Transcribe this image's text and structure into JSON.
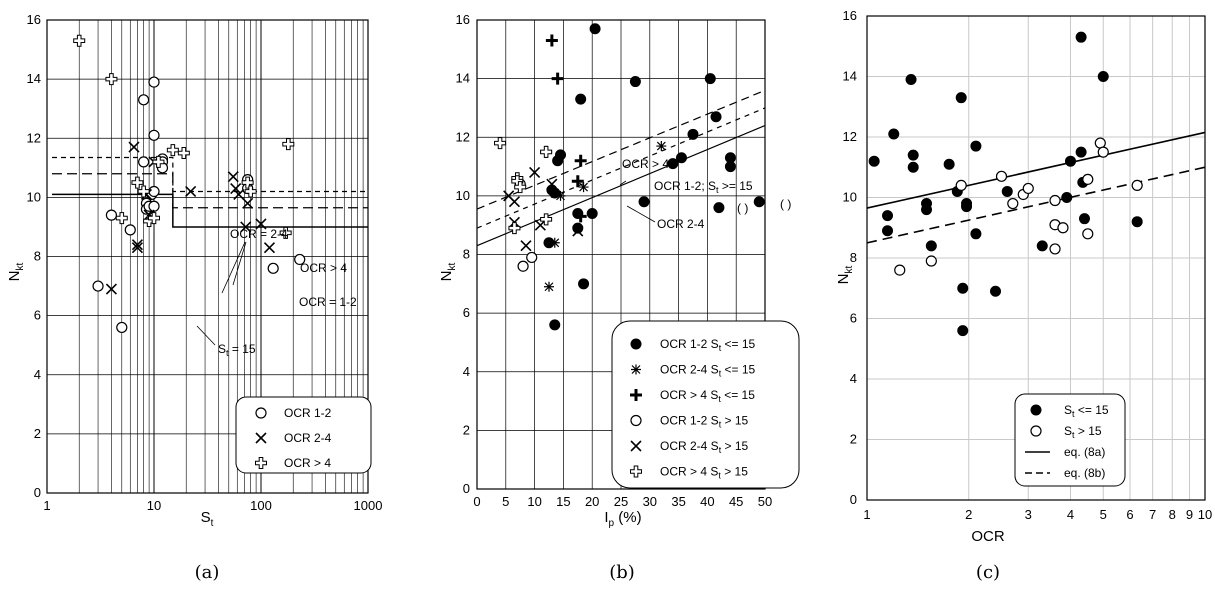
{
  "chart_data": [
    {
      "type": "scatter",
      "caption": "(a)",
      "xlabel": "S",
      "xlabel_sub": "t",
      "ylabel": "N",
      "ylabel_sub": "kt",
      "xscale": "log",
      "xlim": [
        1,
        1000
      ],
      "ylim": [
        0,
        16
      ],
      "xticks": [
        1,
        10,
        100,
        1000
      ],
      "xtick_labels": [
        "1",
        "10",
        "100",
        "1000"
      ],
      "yticks": [
        0,
        2,
        4,
        6,
        8,
        10,
        12,
        14,
        16
      ],
      "grid": true,
      "legend_position": "bottom-right",
      "series": [
        {
          "name": "OCR 1-2",
          "marker": "circle",
          "points": [
            [
              3,
              7
            ],
            [
              4,
              9.4
            ],
            [
              5,
              5.6
            ],
            [
              6,
              8.9
            ],
            [
              8,
              13.3
            ],
            [
              8,
              11.2
            ],
            [
              8.5,
              9.8
            ],
            [
              8.5,
              9.6
            ],
            [
              9,
              9.7
            ],
            [
              9.5,
              10.1
            ],
            [
              10,
              13.9
            ],
            [
              10,
              12.1
            ],
            [
              10,
              10.2
            ],
            [
              10,
              9.7
            ],
            [
              12,
              11.3
            ],
            [
              12,
              11.2
            ],
            [
              12,
              11
            ],
            [
              75,
              10.6
            ],
            [
              75,
              10.3
            ],
            [
              130,
              7.6
            ],
            [
              230,
              7.9
            ]
          ]
        },
        {
          "name": "OCR 2-4",
          "marker": "x",
          "points": [
            [
              4,
              6.9
            ],
            [
              6.5,
              11.7
            ],
            [
              7,
              8.4
            ],
            [
              7,
              8.3
            ],
            [
              8.5,
              10.1
            ],
            [
              9,
              9.4
            ],
            [
              10,
              11.2
            ],
            [
              22,
              10.2
            ],
            [
              55,
              10.7
            ],
            [
              58,
              10.3
            ],
            [
              62,
              10.1
            ],
            [
              75,
              9.8
            ],
            [
              72,
              9
            ],
            [
              100,
              9.1
            ],
            [
              120,
              8.3
            ]
          ]
        },
        {
          "name": "OCR > 4",
          "marker": "plus",
          "points": [
            [
              2,
              15.3
            ],
            [
              4,
              14
            ],
            [
              5,
              9.3
            ],
            [
              7,
              10.5
            ],
            [
              8,
              10.2
            ],
            [
              9,
              9.2
            ],
            [
              10,
              9.3
            ],
            [
              11,
              11.2
            ],
            [
              15,
              11.6
            ],
            [
              19,
              11.5
            ],
            [
              75,
              10.5
            ],
            [
              80,
              10.2
            ],
            [
              170,
              8.8
            ],
            [
              180,
              11.8
            ]
          ]
        }
      ],
      "annotations": [
        "OCR = 2-4",
        "OCR > 4",
        "OCR = 1-2",
        "S_t = 15"
      ],
      "legend": [
        "OCR 1-2",
        "OCR 2-4",
        "OCR > 4"
      ]
    },
    {
      "type": "scatter",
      "caption": "(b)",
      "xlabel": "I",
      "xlabel_sub": "p",
      "xlabel_suffix": " (%)",
      "ylabel": "N",
      "ylabel_sub": "kt",
      "xlim": [
        0,
        50
      ],
      "ylim": [
        0,
        16
      ],
      "xticks": [
        0,
        5,
        10,
        15,
        20,
        25,
        30,
        35,
        40,
        45,
        50
      ],
      "yticks": [
        0,
        2,
        4,
        6,
        8,
        10,
        12,
        14,
        16
      ],
      "grid": true,
      "legend_position": "bottom-right",
      "series": [
        {
          "name": "OCR 1-2 S_t <= 15",
          "marker": "filled-circle",
          "points": [
            [
              12.5,
              8.4
            ],
            [
              13,
              10.2
            ],
            [
              13.5,
              10.1
            ],
            [
              13.5,
              5.6
            ],
            [
              14,
              11.2
            ],
            [
              14.5,
              11.4
            ],
            [
              17.5,
              8.9
            ],
            [
              17.5,
              9.4
            ],
            [
              18,
              13.3
            ],
            [
              18.5,
              7
            ],
            [
              20,
              9.4
            ],
            [
              20.5,
              15.7
            ],
            [
              27.5,
              13.9
            ],
            [
              29,
              9.8
            ],
            [
              34,
              11.1
            ],
            [
              35.5,
              11.3
            ],
            [
              37.5,
              12.1
            ],
            [
              40.5,
              14
            ],
            [
              41.5,
              12.7
            ],
            [
              42,
              9.6
            ],
            [
              44,
              11.3
            ],
            [
              44,
              11
            ],
            [
              49,
              9.8
            ]
          ]
        },
        {
          "name": "OCR 2-4 S_t <= 15",
          "marker": "asterisk",
          "points": [
            [
              12.5,
              6.9
            ],
            [
              13.5,
              8.4
            ],
            [
              14.5,
              10
            ],
            [
              18.5,
              10.3
            ],
            [
              32,
              11.7
            ]
          ]
        },
        {
          "name": "OCR > 4 S_t <= 15",
          "marker": "bold-plus",
          "points": [
            [
              13,
              15.3
            ],
            [
              14,
              14
            ],
            [
              12,
              11.5
            ],
            [
              17.5,
              10.5
            ],
            [
              18,
              11.2
            ],
            [
              18,
              9.3
            ]
          ]
        },
        {
          "name": "OCR 1-2 S_t > 15",
          "marker": "circle",
          "points": [
            [
              7.5,
              10.4
            ],
            [
              8,
              7.6
            ],
            [
              9.5,
              7.9
            ]
          ]
        },
        {
          "name": "OCR 2-4 S_t > 15",
          "marker": "x",
          "points": [
            [
              5.5,
              10
            ],
            [
              6.5,
              9.8
            ],
            [
              6.5,
              9.1
            ],
            [
              8.5,
              8.3
            ],
            [
              10,
              10.8
            ],
            [
              11,
              9
            ],
            [
              13,
              10.4
            ],
            [
              17.5,
              8.8
            ]
          ]
        },
        {
          "name": "OCR > 4 S_t > 15",
          "marker": "plus",
          "points": [
            [
              4,
              11.8
            ],
            [
              6.5,
              8.9
            ],
            [
              7,
              10.6
            ],
            [
              7,
              10.5
            ],
            [
              7.5,
              10.3
            ],
            [
              12,
              9.2
            ],
            [
              12,
              11.5
            ]
          ]
        }
      ],
      "annotations": [
        "OCR > 4",
        "OCR 1-2; S_t >= 15",
        "OCR 2-4",
        "( )",
        "( )"
      ],
      "legend": [
        "OCR 1-2 S_t <= 15",
        "OCR 2-4 S_t <= 15",
        "OCR > 4 S_t <= 15",
        "OCR 1-2 S_t > 15",
        "OCR 2-4 S_t > 15",
        "OCR > 4 S_t > 15"
      ]
    },
    {
      "type": "scatter",
      "caption": "(c)",
      "xlabel": "OCR",
      "ylabel": "N",
      "ylabel_sub": "kt",
      "xscale": "log",
      "xlim": [
        1,
        10
      ],
      "ylim": [
        0,
        16
      ],
      "xticks": [
        1,
        2,
        3,
        4,
        5,
        6,
        7,
        8,
        9,
        10
      ],
      "xtick_labels": [
        "1",
        "2",
        "3",
        "4",
        "5",
        "6",
        "7",
        "8",
        "9",
        "10"
      ],
      "yticks": [
        0,
        2,
        4,
        6,
        8,
        10,
        12,
        14,
        16
      ],
      "grid": true,
      "legend_position": "bottom-right",
      "series": [
        {
          "name": "S_t <= 15",
          "marker": "filled-circle",
          "points": [
            [
              1.05,
              11.2
            ],
            [
              1.15,
              9.4
            ],
            [
              1.15,
              8.9
            ],
            [
              1.2,
              12.1
            ],
            [
              1.35,
              13.9
            ],
            [
              1.37,
              11.4
            ],
            [
              1.37,
              11
            ],
            [
              1.5,
              9.8
            ],
            [
              1.5,
              9.6
            ],
            [
              1.55,
              8.4
            ],
            [
              1.75,
              11.1
            ],
            [
              1.85,
              10.2
            ],
            [
              1.9,
              13.3
            ],
            [
              1.92,
              7
            ],
            [
              1.92,
              5.6
            ],
            [
              1.97,
              9.8
            ],
            [
              1.97,
              9.7
            ],
            [
              2.1,
              11.7
            ],
            [
              2.1,
              8.8
            ],
            [
              2.4,
              6.9
            ],
            [
              2.6,
              10.2
            ],
            [
              3.3,
              8.4
            ],
            [
              3.9,
              10
            ],
            [
              4,
              11.2
            ],
            [
              4.3,
              15.3
            ],
            [
              4.3,
              11.5
            ],
            [
              4.35,
              10.5
            ],
            [
              4.4,
              9.3
            ],
            [
              5,
              14
            ],
            [
              6.3,
              9.2
            ]
          ]
        },
        {
          "name": "S_t > 15",
          "marker": "circle",
          "points": [
            [
              1.25,
              7.6
            ],
            [
              1.55,
              7.9
            ],
            [
              1.9,
              10.4
            ],
            [
              2.5,
              10.7
            ],
            [
              2.7,
              9.8
            ],
            [
              2.9,
              10.1
            ],
            [
              3,
              10.3
            ],
            [
              3.6,
              9.9
            ],
            [
              3.6,
              9.1
            ],
            [
              3.6,
              8.3
            ],
            [
              3.8,
              9
            ],
            [
              4.5,
              10.6
            ],
            [
              4.5,
              8.8
            ],
            [
              4.9,
              11.8
            ],
            [
              5,
              11.5
            ],
            [
              6.3,
              10.4
            ]
          ]
        }
      ],
      "lines": [
        {
          "name": "eq. (8a)",
          "style": "solid",
          "points": [
            [
              1,
              9.65
            ],
            [
              10,
              12.15
            ]
          ]
        },
        {
          "name": "eq. (8b)",
          "style": "dashed",
          "points": [
            [
              1,
              8.5
            ],
            [
              10,
              11
            ]
          ]
        }
      ],
      "legend": [
        "S_t <= 15",
        "S_t > 15",
        "eq. (8a)",
        "eq. (8b)"
      ]
    }
  ],
  "labels": {
    "a_legend": [
      "OCR 1-2",
      "OCR 2-4",
      "OCR > 4"
    ],
    "b_legend_prefix": [
      "OCR 1-2 S",
      "OCR 2-4 S",
      "OCR > 4 S",
      "OCR 1-2 S",
      "OCR 2-4 S",
      "OCR > 4 S"
    ],
    "b_legend_suffix": [
      " <= 15",
      " <= 15",
      " <= 15",
      " > 15",
      " > 15",
      " > 15"
    ],
    "c_legend_prefix": [
      "S",
      "S",
      "eq. (8a)",
      "eq. (8b)"
    ],
    "c_legend_suffix": [
      " <= 15",
      " > 15",
      "",
      ""
    ],
    "a_ann_ocr24": "OCR = 2-4",
    "a_ann_ocr4": "OCR > 4",
    "a_ann_ocr12": "OCR = 1-2",
    "a_ann_st": "S",
    "a_ann_st_sub": "t",
    "a_ann_st_val": " = 15",
    "b_ann_ocr4": "OCR > 4",
    "b_ann_ocr12": "OCR 1-2; S",
    "b_ann_ocr12_sub": "t",
    "b_ann_ocr12_val": " >= 15",
    "b_ann_ocr24": "OCR 2-4",
    "b_paren": "(  )"
  }
}
